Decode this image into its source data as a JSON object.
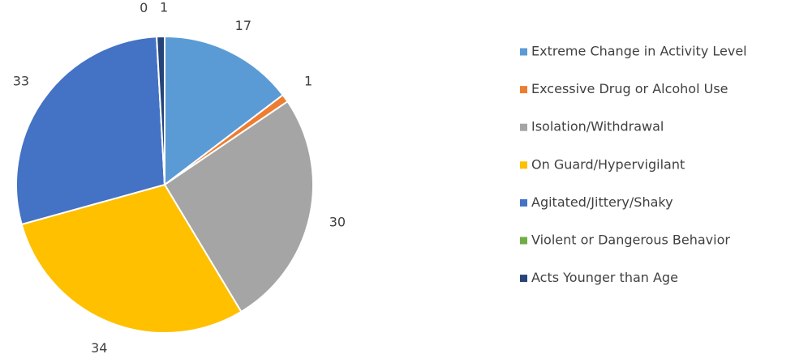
{
  "chart_data": {
    "type": "pie",
    "categories": [
      "Extreme Change in Activity Level",
      "Excessive Drug or Alcohol Use",
      "Isolation/Withdrawal",
      "On Guard/Hypervigilant",
      "Agitated/Jittery/Shaky",
      "Violent or Dangerous Behavior",
      "Acts Younger than Age"
    ],
    "values": [
      17,
      1,
      30,
      34,
      33,
      0,
      1
    ],
    "colors": [
      "#5b9bd5",
      "#ed7d31",
      "#a5a5a5",
      "#ffc000",
      "#4472c4",
      "#70ad47",
      "#264478"
    ],
    "legend": "right"
  }
}
